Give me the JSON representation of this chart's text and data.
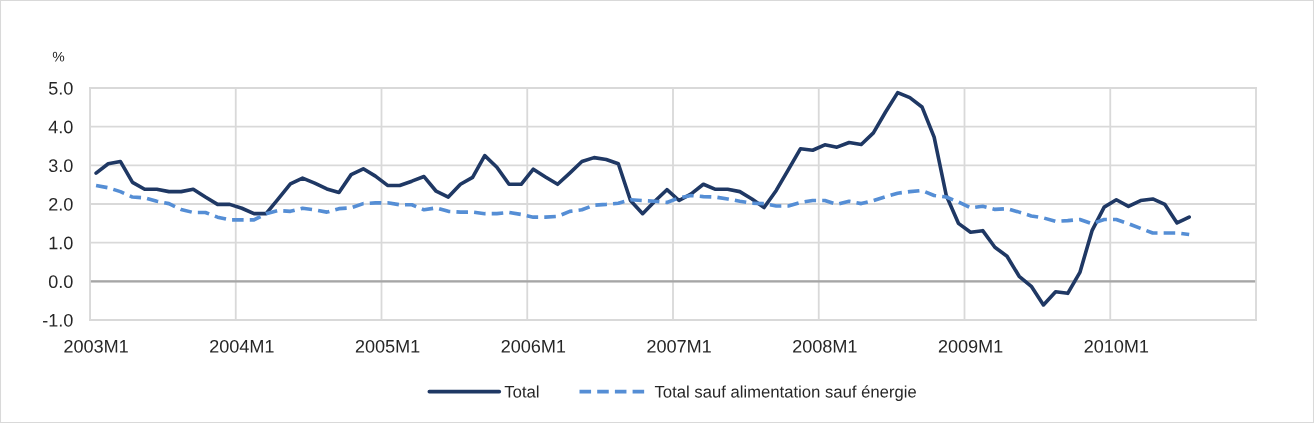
{
  "chart_data": {
    "type": "line",
    "ylabel": "%",
    "categories": [
      "2003M1",
      null,
      null,
      null,
      null,
      null,
      null,
      null,
      null,
      null,
      null,
      null,
      "2004M1",
      null,
      null,
      null,
      null,
      null,
      null,
      null,
      null,
      null,
      null,
      null,
      "2005M1",
      null,
      null,
      null,
      null,
      null,
      null,
      null,
      null,
      null,
      null,
      null,
      "2006M1",
      null,
      null,
      null,
      null,
      null,
      null,
      null,
      null,
      null,
      null,
      null,
      "2007M1",
      null,
      null,
      null,
      null,
      null,
      null,
      null,
      null,
      null,
      null,
      null,
      "2008M1",
      null,
      null,
      null,
      null,
      null,
      null,
      null,
      null,
      null,
      null,
      null,
      "2009M1",
      null,
      null,
      null,
      null,
      null,
      null,
      null,
      null,
      null,
      null,
      null,
      "2010M1",
      null,
      null,
      null,
      null,
      null,
      null,
      null,
      null,
      null,
      null,
      null
    ],
    "series": [
      {
        "name": "Total",
        "color": "#1f3864",
        "line_style": "solid",
        "values": [
          2.8,
          3.04,
          3.1,
          2.56,
          2.38,
          2.38,
          2.32,
          2.32,
          2.38,
          2.18,
          1.99,
          1.99,
          1.89,
          1.75,
          1.75,
          2.13,
          2.52,
          2.67,
          2.54,
          2.39,
          2.3,
          2.76,
          2.91,
          2.72,
          2.48,
          2.48,
          2.59,
          2.71,
          2.33,
          2.18,
          2.51,
          2.69,
          3.25,
          2.95,
          2.51,
          2.51,
          2.9,
          2.7,
          2.51,
          2.8,
          3.1,
          3.2,
          3.15,
          3.04,
          2.09,
          1.75,
          2.07,
          2.37,
          2.09,
          2.26,
          2.51,
          2.38,
          2.38,
          2.32,
          2.13,
          1.91,
          2.35,
          2.89,
          3.43,
          3.39,
          3.53,
          3.47,
          3.59,
          3.54,
          3.84,
          4.38,
          4.88,
          4.75,
          4.51,
          3.73,
          2.22,
          1.5,
          1.27,
          1.31,
          0.88,
          0.65,
          0.13,
          -0.13,
          -0.61,
          -0.27,
          -0.31,
          0.23,
          1.31,
          1.92,
          2.11,
          1.94,
          2.09,
          2.13,
          1.99,
          1.51,
          1.66,
          null,
          null,
          null,
          null,
          null
        ]
      },
      {
        "name": "Total sauf alimentation sauf énergie",
        "color": "#558ed5",
        "line_style": "dashed",
        "values": [
          2.48,
          2.42,
          2.32,
          2.18,
          2.16,
          2.07,
          2.01,
          1.86,
          1.78,
          1.78,
          1.66,
          1.59,
          1.59,
          1.59,
          1.75,
          1.83,
          1.81,
          1.89,
          1.85,
          1.79,
          1.88,
          1.9,
          2.01,
          2.03,
          2.03,
          1.98,
          1.98,
          1.85,
          1.9,
          1.81,
          1.79,
          1.79,
          1.75,
          1.75,
          1.78,
          1.73,
          1.66,
          1.66,
          1.68,
          1.81,
          1.85,
          1.97,
          1.99,
          2.02,
          2.11,
          2.09,
          2.07,
          2.04,
          2.16,
          2.22,
          2.19,
          2.18,
          2.13,
          2.07,
          2.02,
          2.01,
          1.95,
          1.95,
          2.04,
          2.09,
          2.09,
          1.99,
          2.07,
          2.01,
          2.09,
          2.19,
          2.28,
          2.32,
          2.35,
          2.22,
          2.18,
          2.05,
          1.9,
          1.94,
          1.86,
          1.88,
          1.79,
          1.69,
          1.64,
          1.55,
          1.57,
          1.6,
          1.49,
          1.6,
          1.6,
          1.49,
          1.37,
          1.25,
          1.25,
          1.25,
          1.21,
          null,
          null,
          null,
          null,
          null
        ]
      }
    ],
    "ylim": [
      -1,
      5
    ],
    "yticks": [
      {
        "value": -1,
        "label": "-1.0"
      },
      {
        "value": 0,
        "label": "0.0"
      },
      {
        "value": 1,
        "label": "1.0"
      },
      {
        "value": 2,
        "label": "2.0"
      },
      {
        "value": 3,
        "label": "3.0"
      },
      {
        "value": 4,
        "label": "4.0"
      },
      {
        "value": 5,
        "label": "5.0"
      }
    ],
    "ref_lines": [
      {
        "axis": "y",
        "value": 0,
        "color": "#a6a6a6"
      }
    ],
    "grid": true,
    "legend": "bottom"
  }
}
